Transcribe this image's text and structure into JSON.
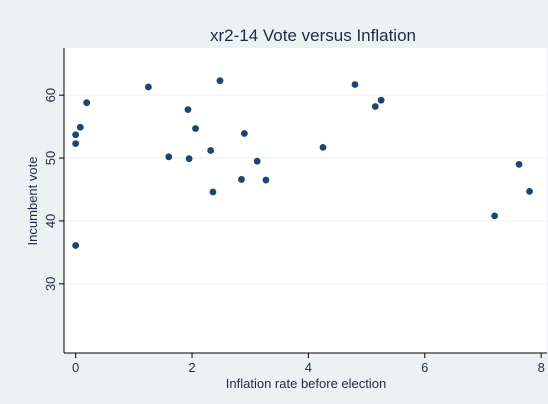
{
  "chart_data": {
    "type": "scatter",
    "title": "xr2-14 Vote versus Inflation",
    "xlabel": "Inflation rate before election",
    "ylabel": "Incumbent vote",
    "xlim": [
      -0.2,
      8.1
    ],
    "ylim": [
      19,
      67.5
    ],
    "xticks": [
      0,
      2,
      4,
      6,
      8
    ],
    "yticks": [
      30,
      40,
      50,
      60
    ],
    "grid": true,
    "legend": "none",
    "points": [
      {
        "x": 0.0,
        "y": 36.1
      },
      {
        "x": 0.0,
        "y": 52.3
      },
      {
        "x": 0.0,
        "y": 53.7
      },
      {
        "x": 0.08,
        "y": 54.9
      },
      {
        "x": 0.19,
        "y": 58.8
      },
      {
        "x": 1.25,
        "y": 61.3
      },
      {
        "x": 1.6,
        "y": 50.2
      },
      {
        "x": 1.93,
        "y": 57.7
      },
      {
        "x": 1.95,
        "y": 49.9
      },
      {
        "x": 2.06,
        "y": 54.7
      },
      {
        "x": 2.32,
        "y": 51.2
      },
      {
        "x": 2.36,
        "y": 44.6
      },
      {
        "x": 2.48,
        "y": 62.3
      },
      {
        "x": 2.85,
        "y": 46.6
      },
      {
        "x": 2.9,
        "y": 53.9
      },
      {
        "x": 3.12,
        "y": 49.5
      },
      {
        "x": 3.27,
        "y": 46.5
      },
      {
        "x": 4.25,
        "y": 51.7
      },
      {
        "x": 4.8,
        "y": 61.7
      },
      {
        "x": 5.15,
        "y": 58.2
      },
      {
        "x": 5.25,
        "y": 59.2
      },
      {
        "x": 7.2,
        "y": 40.8
      },
      {
        "x": 7.62,
        "y": 49.0
      },
      {
        "x": 7.8,
        "y": 44.7
      }
    ]
  },
  "colors": {
    "outer_bg": "#eaf2f3",
    "plot_bg": "#ffffff",
    "grid": "#eaf2f3",
    "marker": "#1a476f",
    "text": "#1f2a44",
    "axis": "#000000"
  }
}
